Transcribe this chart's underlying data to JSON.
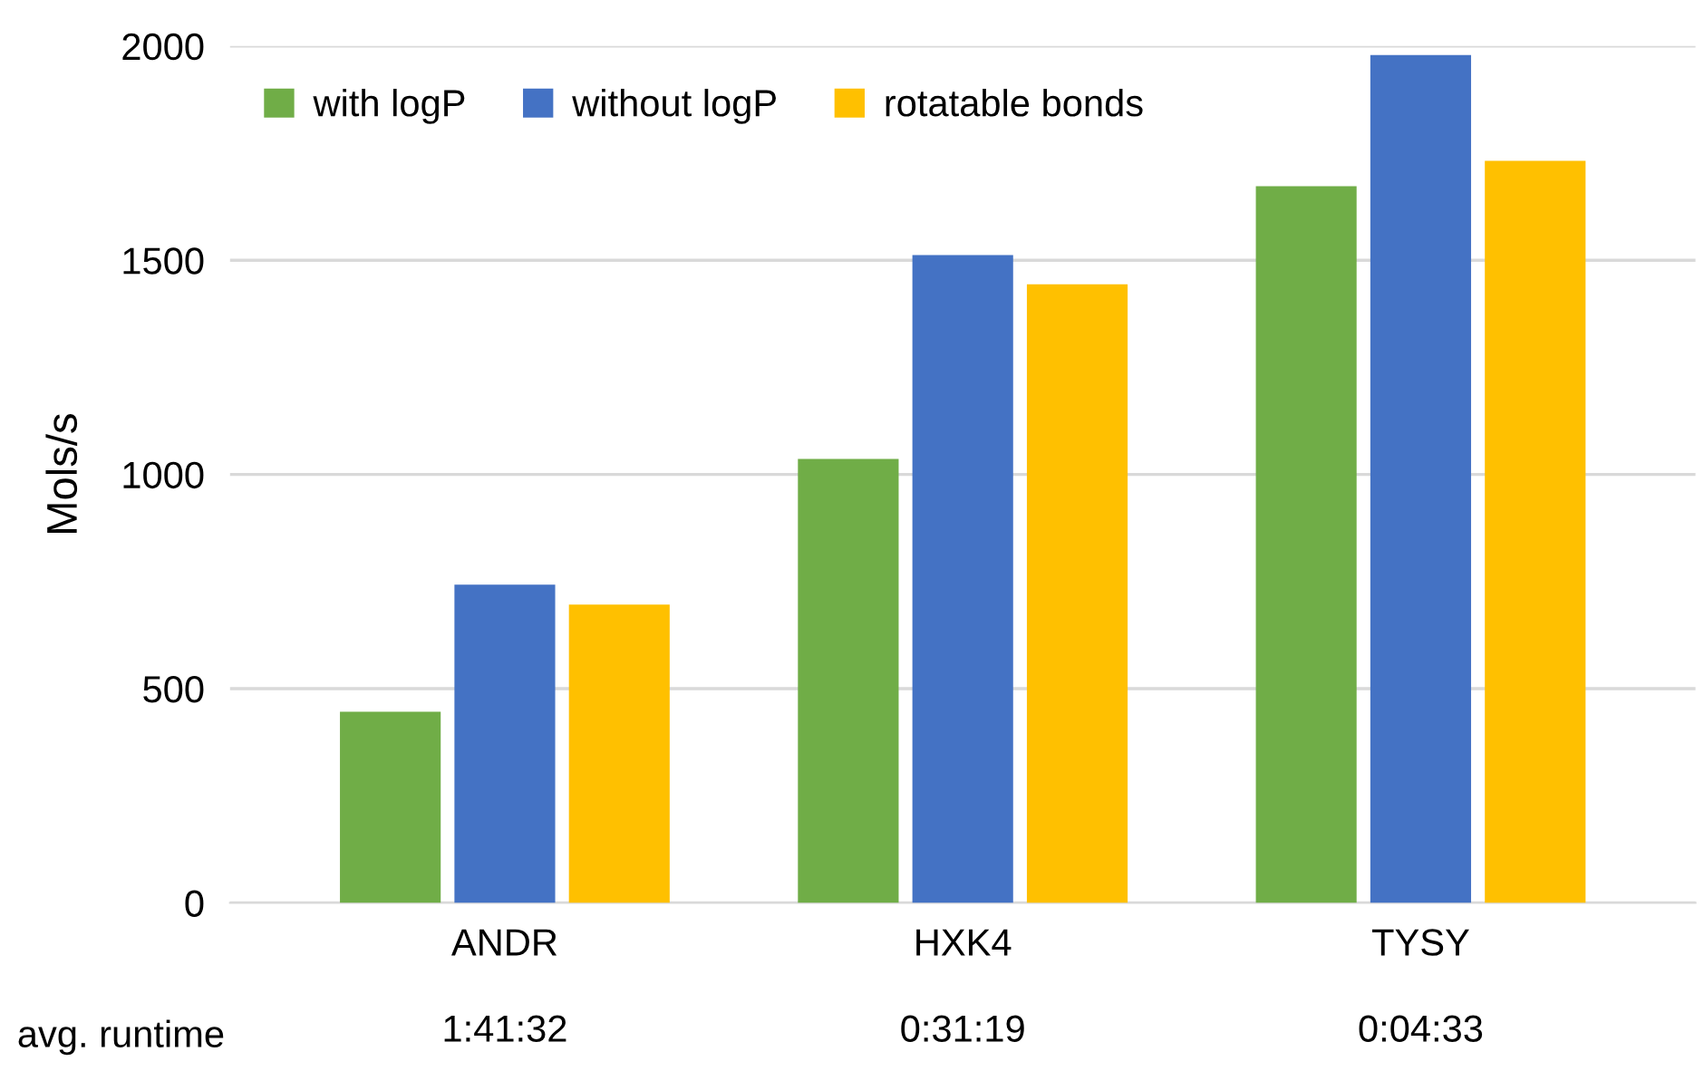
{
  "chart_data": {
    "type": "bar",
    "ylabel": "Mols/s",
    "categories": [
      "ANDR",
      "HXK4",
      "TYSY"
    ],
    "series": [
      {
        "name": "with logP",
        "color": "#70ad47",
        "values": [
          446,
          1036,
          1673
        ]
      },
      {
        "name": "without logP",
        "color": "#4472c4",
        "values": [
          743,
          1512,
          1979
        ]
      },
      {
        "name": "rotatable bonds",
        "color": "#ffc000",
        "values": [
          696,
          1444,
          1732
        ]
      }
    ],
    "ylim": [
      0,
      2000
    ],
    "yticks": [
      0,
      500,
      1000,
      1500,
      2000
    ],
    "grid": "y",
    "legend": "top left",
    "annotations": [
      "avg. runtime",
      "1:41:32",
      "0:31:19",
      "0:04:33"
    ]
  }
}
